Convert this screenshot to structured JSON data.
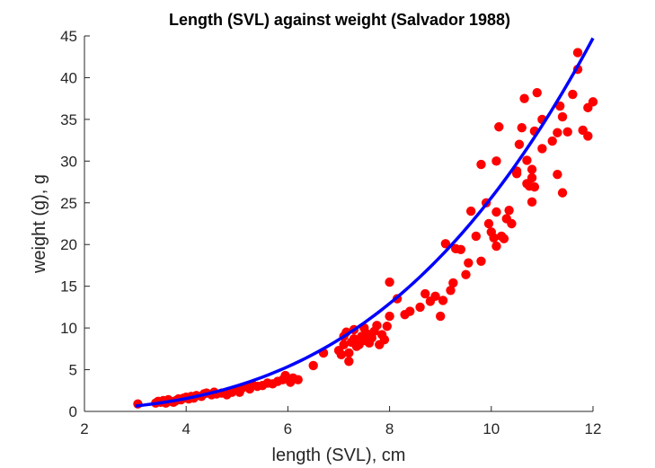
{
  "chart_data": {
    "type": "scatter",
    "title": "Length (SVL) against weight (Salvador 1988)",
    "xlabel": "length (SVL), cm",
    "ylabel": "weight (g), g",
    "xlim": [
      2,
      12
    ],
    "ylim": [
      0,
      45
    ],
    "xticks": [
      "2",
      "4",
      "6",
      "8",
      "10",
      "12"
    ],
    "yticks": [
      "0",
      "5",
      "10",
      "15",
      "20",
      "25",
      "30",
      "35",
      "40",
      "45"
    ],
    "grid": false,
    "colors": {
      "points": "#ff0000",
      "fit": "#0000ff",
      "axes": "#262626"
    },
    "fit_curve": {
      "type": "power",
      "a": 0.0223,
      "b": 3.06,
      "x_range": [
        3,
        12
      ]
    },
    "points": [
      [
        3.05,
        0.9
      ],
      [
        3.4,
        1.0
      ],
      [
        3.45,
        1.2
      ],
      [
        3.5,
        1.1
      ],
      [
        3.55,
        1.3
      ],
      [
        3.6,
        1.0
      ],
      [
        3.65,
        1.4
      ],
      [
        3.7,
        1.2
      ],
      [
        3.75,
        1.1
      ],
      [
        3.8,
        1.3
      ],
      [
        3.85,
        1.5
      ],
      [
        3.9,
        1.4
      ],
      [
        3.95,
        1.6
      ],
      [
        4.0,
        1.7
      ],
      [
        4.05,
        1.5
      ],
      [
        4.1,
        1.8
      ],
      [
        4.15,
        1.6
      ],
      [
        4.2,
        1.9
      ],
      [
        4.3,
        1.8
      ],
      [
        4.35,
        2.1
      ],
      [
        4.4,
        2.2
      ],
      [
        4.5,
        2.0
      ],
      [
        4.55,
        2.3
      ],
      [
        4.6,
        2.1
      ],
      [
        4.7,
        2.2
      ],
      [
        4.8,
        2.0
      ],
      [
        4.85,
        2.4
      ],
      [
        4.9,
        2.3
      ],
      [
        5.0,
        2.6
      ],
      [
        5.05,
        2.3
      ],
      [
        5.1,
        2.8
      ],
      [
        5.2,
        3.0
      ],
      [
        5.25,
        2.7
      ],
      [
        5.3,
        3.2
      ],
      [
        5.4,
        3.0
      ],
      [
        5.5,
        3.1
      ],
      [
        5.6,
        3.4
      ],
      [
        5.7,
        3.3
      ],
      [
        5.8,
        3.6
      ],
      [
        5.9,
        3.8
      ],
      [
        5.95,
        4.3
      ],
      [
        6.0,
        3.9
      ],
      [
        6.05,
        3.5
      ],
      [
        6.1,
        4.0
      ],
      [
        6.2,
        3.8
      ],
      [
        6.5,
        5.5
      ],
      [
        6.7,
        7.0
      ],
      [
        7.0,
        7.3
      ],
      [
        7.05,
        6.8
      ],
      [
        7.1,
        8.0
      ],
      [
        7.1,
        9.0
      ],
      [
        7.15,
        9.5
      ],
      [
        7.2,
        7.0
      ],
      [
        7.2,
        6.0
      ],
      [
        7.25,
        8.3
      ],
      [
        7.3,
        8.7
      ],
      [
        7.3,
        9.8
      ],
      [
        7.35,
        7.8
      ],
      [
        7.4,
        8.0
      ],
      [
        7.45,
        9.0
      ],
      [
        7.5,
        8.5
      ],
      [
        7.5,
        10.0
      ],
      [
        7.55,
        9.3
      ],
      [
        7.6,
        8.2
      ],
      [
        7.65,
        8.8
      ],
      [
        7.7,
        9.6
      ],
      [
        7.75,
        10.3
      ],
      [
        7.8,
        8.0
      ],
      [
        7.85,
        9.2
      ],
      [
        7.9,
        8.6
      ],
      [
        7.95,
        10.2
      ],
      [
        8.0,
        11.4
      ],
      [
        8.0,
        15.5
      ],
      [
        8.15,
        13.5
      ],
      [
        8.3,
        11.6
      ],
      [
        8.4,
        12.0
      ],
      [
        8.6,
        12.5
      ],
      [
        8.7,
        14.1
      ],
      [
        8.8,
        13.2
      ],
      [
        8.9,
        13.8
      ],
      [
        9.0,
        11.4
      ],
      [
        9.05,
        13.3
      ],
      [
        9.1,
        20.1
      ],
      [
        9.2,
        14.5
      ],
      [
        9.25,
        15.4
      ],
      [
        9.3,
        19.5
      ],
      [
        9.4,
        19.4
      ],
      [
        9.5,
        16.4
      ],
      [
        9.55,
        17.8
      ],
      [
        9.6,
        24.0
      ],
      [
        9.7,
        21.0
      ],
      [
        9.8,
        18.0
      ],
      [
        9.8,
        29.6
      ],
      [
        9.9,
        25.0
      ],
      [
        9.95,
        22.5
      ],
      [
        10.0,
        21.5
      ],
      [
        10.05,
        20.8
      ],
      [
        10.1,
        19.8
      ],
      [
        10.1,
        23.9
      ],
      [
        10.15,
        34.1
      ],
      [
        10.2,
        21.0
      ],
      [
        10.25,
        20.7
      ],
      [
        10.3,
        23.1
      ],
      [
        10.35,
        24.1
      ],
      [
        10.4,
        22.5
      ],
      [
        10.5,
        28.5
      ],
      [
        10.55,
        32.0
      ],
      [
        10.6,
        34.0
      ],
      [
        10.65,
        37.5
      ],
      [
        10.7,
        27.3
      ],
      [
        10.75,
        27.0
      ],
      [
        10.8,
        29.0
      ],
      [
        10.85,
        26.9
      ],
      [
        10.8,
        25.1
      ],
      [
        10.85,
        33.6
      ],
      [
        10.9,
        38.2
      ],
      [
        11.0,
        35.0
      ],
      [
        11.0,
        31.5
      ],
      [
        11.2,
        32.4
      ],
      [
        11.3,
        28.4
      ],
      [
        11.3,
        33.4
      ],
      [
        11.35,
        36.6
      ],
      [
        11.4,
        35.3
      ],
      [
        11.4,
        26.2
      ],
      [
        11.5,
        33.5
      ],
      [
        11.6,
        38.0
      ],
      [
        11.7,
        41.0
      ],
      [
        11.7,
        43.0
      ],
      [
        11.8,
        33.7
      ],
      [
        11.9,
        33.0
      ],
      [
        11.9,
        36.4
      ],
      [
        12.0,
        37.1
      ],
      [
        10.1,
        30.0
      ],
      [
        10.5,
        28.8
      ],
      [
        10.7,
        30.1
      ],
      [
        10.8,
        28.0
      ]
    ]
  }
}
